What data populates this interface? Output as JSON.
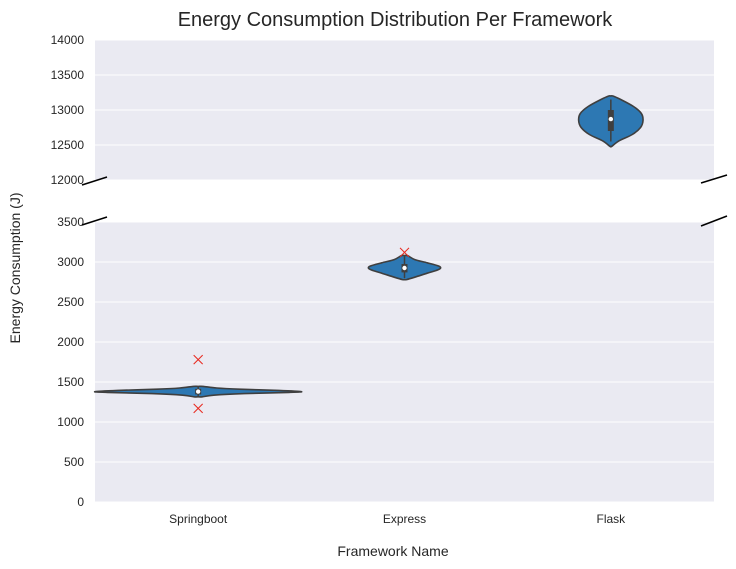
{
  "chart_data": {
    "type": "violin",
    "title": "Energy Consumption Distribution Per Framework",
    "xlabel": "Framework Name",
    "ylabel": "Energy Consumption (J)",
    "categories": [
      "Springboot",
      "Express",
      "Flask"
    ],
    "broken_axis": {
      "upper": {
        "ylim": [
          12000,
          14000
        ],
        "ticks": [
          12000,
          12500,
          13000,
          13500,
          14000
        ]
      },
      "lower": {
        "ylim": [
          0,
          3500
        ],
        "ticks": [
          0,
          500,
          1000,
          1500,
          2000,
          2500,
          3000,
          3500
        ]
      }
    },
    "grid": true,
    "colors": {
      "violin_fill": "#2d78b3",
      "outlier": "#e8281e",
      "panel": "#eaeaf2"
    },
    "violins": [
      {
        "category": "Springboot",
        "median": 1380,
        "q1": 1345,
        "q3": 1415,
        "whisker_low": 1320,
        "whisker_high": 1440,
        "density": [
          [
            1315,
            0.04
          ],
          [
            1335,
            0.15
          ],
          [
            1355,
            0.45
          ],
          [
            1370,
            0.88
          ],
          [
            1380,
            1.0
          ],
          [
            1395,
            0.78
          ],
          [
            1410,
            0.4
          ],
          [
            1425,
            0.18
          ],
          [
            1445,
            0.05
          ]
        ],
        "max_halfwidth": 0.5,
        "outliers": [
          1780,
          1170
        ]
      },
      {
        "category": "Express",
        "median": 2925,
        "q1": 2870,
        "q3": 2975,
        "whisker_low": 2800,
        "whisker_high": 3070,
        "density": [
          [
            2780,
            0.02
          ],
          [
            2810,
            0.1
          ],
          [
            2860,
            0.22
          ],
          [
            2900,
            0.32
          ],
          [
            2925,
            0.35
          ],
          [
            2950,
            0.33
          ],
          [
            2990,
            0.22
          ],
          [
            3030,
            0.1
          ],
          [
            3080,
            0.03
          ]
        ],
        "max_halfwidth": 0.5,
        "outliers": [
          3120
        ]
      },
      {
        "category": "Flask",
        "median": 12870,
        "q1": 12700,
        "q3": 13000,
        "whisker_low": 12550,
        "whisker_high": 13150,
        "density": [
          [
            12480,
            0.02
          ],
          [
            12560,
            0.2
          ],
          [
            12650,
            0.52
          ],
          [
            12750,
            0.72
          ],
          [
            12850,
            0.78
          ],
          [
            12950,
            0.74
          ],
          [
            13050,
            0.55
          ],
          [
            13150,
            0.24
          ],
          [
            13200,
            0.05
          ]
        ],
        "max_halfwidth": 0.2,
        "outliers": []
      }
    ]
  }
}
